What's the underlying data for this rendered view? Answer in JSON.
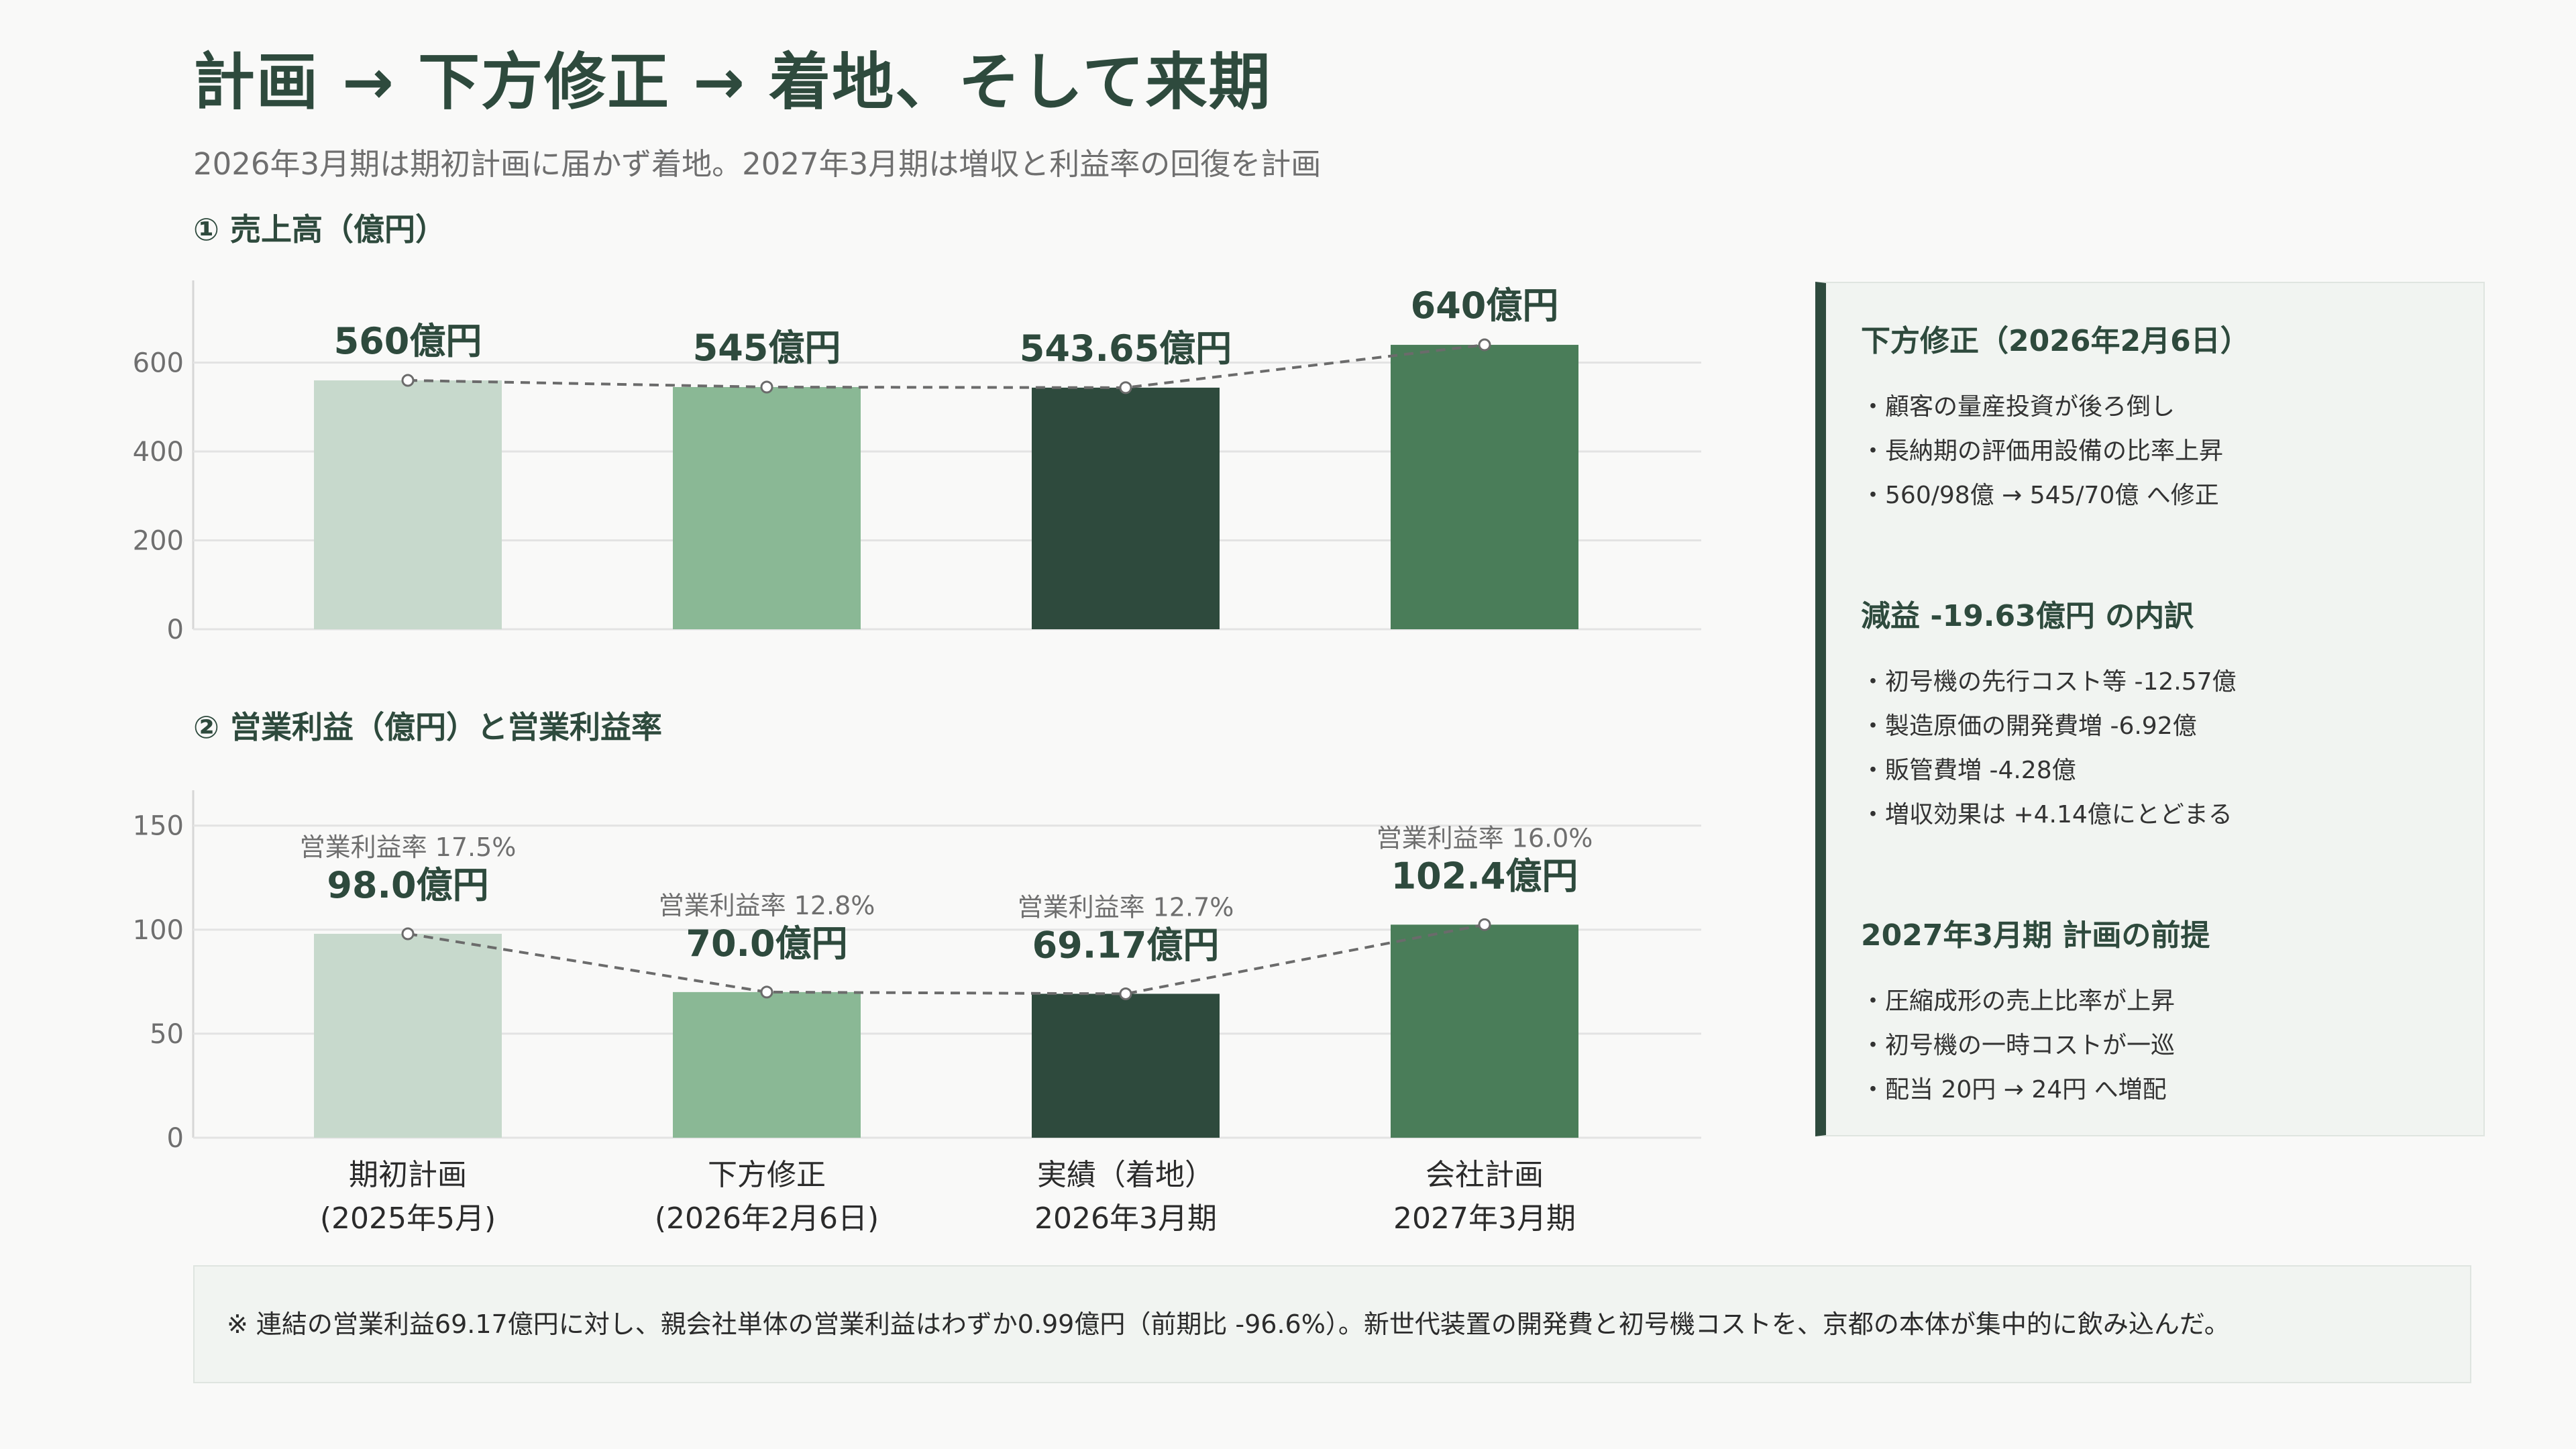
{
  "title": "計画 → 下方修正 → 着地、そして来期",
  "subtitle": "2026年3月期は期初計画に届かず着地。2027年3月期は増収と利益率の回復を計画",
  "colors": {
    "plan": "#c7d9cc",
    "revised": "#8ab895",
    "actual": "#2e4a3d",
    "forecast": "#4a7d59",
    "grid": "#e3e3e3",
    "axis_text": "#6f6f6f"
  },
  "categories": [
    {
      "line1": "期初計画",
      "line2": "(2025年5月)"
    },
    {
      "line1": "下方修正",
      "line2": "(2026年2月6日)"
    },
    {
      "line1": "実績（着地）",
      "line2": "2026年3月期"
    },
    {
      "line1": "会社計画",
      "line2": "2027年3月期"
    }
  ],
  "chart_data": [
    {
      "type": "bar",
      "title": "① 売上高（億円）",
      "categories": [
        "期初計画 (2025年5月)",
        "下方修正 (2026年2月6日)",
        "実績（着地） 2026年3月期",
        "会社計画 2027年3月期"
      ],
      "values": [
        560,
        545,
        543.65,
        640
      ],
      "data_labels": [
        "560億円",
        "545億円",
        "543.65億円",
        "640億円"
      ],
      "yticks": [
        0,
        200,
        400,
        600
      ],
      "ylim": [
        0,
        785
      ],
      "overlay_line": "dashed",
      "grid": true
    },
    {
      "type": "bar",
      "title": "② 営業利益（億円）と営業利益率",
      "categories": [
        "期初計画 (2025年5月)",
        "下方修正 (2026年2月6日)",
        "実績（着地） 2026年3月期",
        "会社計画 2027年3月期"
      ],
      "values": [
        98.0,
        70.0,
        69.17,
        102.4
      ],
      "data_labels": [
        "98.0億円",
        "70.0億円",
        "69.17億円",
        "102.4億円"
      ],
      "margin_labels": [
        "営業利益率 17.5%",
        "営業利益率 12.8%",
        "営業利益率 12.7%",
        "営業利益率 16.0%"
      ],
      "margins": [
        17.5,
        12.8,
        12.7,
        16.0
      ],
      "yticks": [
        0,
        50,
        100,
        150
      ],
      "ylim": [
        0,
        167
      ],
      "overlay_line": "dashed",
      "grid": true
    }
  ],
  "side_panel": {
    "sections": [
      {
        "heading": "下方修正（2026年2月6日）",
        "items": [
          "顧客の量産投資が後ろ倒し",
          "長納期の評価用設備の比率上昇",
          "560/98億 → 545/70億 へ修正"
        ]
      },
      {
        "heading": "減益 -19.63億円 の内訳",
        "items": [
          "初号機の先行コスト等 -12.57億",
          "製造原価の開発費増 -6.92億",
          "販管費増 -4.28億",
          "増収効果は +4.14億にとどまる"
        ]
      },
      {
        "heading": "2027年3月期 計画の前提",
        "items": [
          "圧縮成形の売上比率が上昇",
          "初号機の一時コストが一巡",
          "配当 20円 → 24円 へ増配"
        ]
      }
    ]
  },
  "footnote": "※ 連結の営業利益69.17億円に対し、親会社単体の営業利益はわずか0.99億円（前期比 -96.6%）。新世代装置の開発費と初号機コストを、京都の本体が集中的に飲み込んだ。"
}
